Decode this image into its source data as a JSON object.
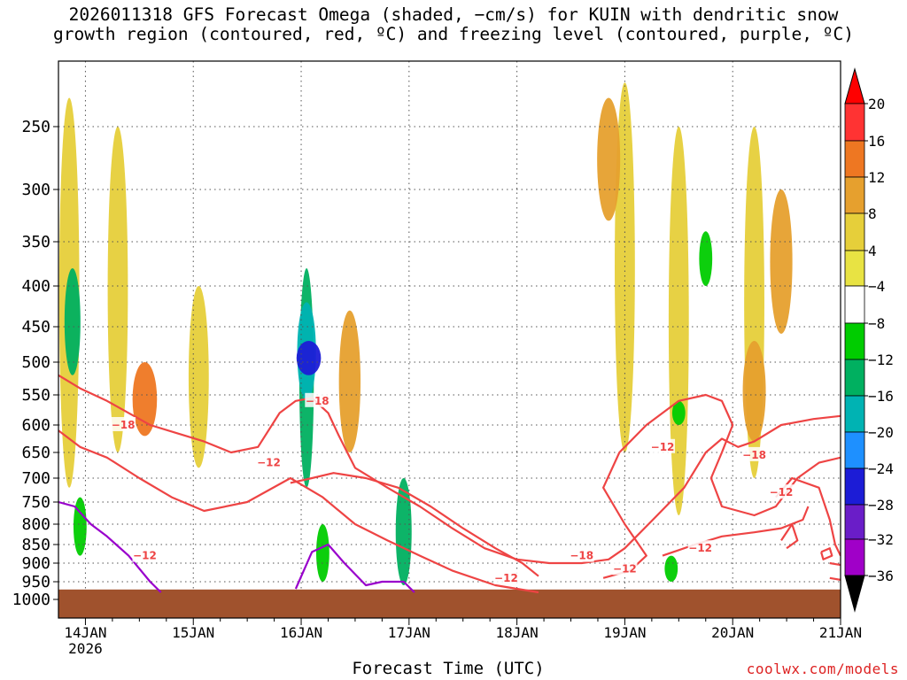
{
  "title": {
    "line1": "2026011318 GFS Forecast Omega (shaded, −cm/s) for KUIN with dendritic snow",
    "line2": "growth region (contoured, red, ºC) and freezing level (contoured, purple, ºC)"
  },
  "credit": "coolwx.com/models",
  "colors": {
    "terrain": "#a0522d",
    "dgz_contour": "#ee4444",
    "freezing_contour": "#9900cc",
    "grid": "#555555"
  },
  "chart_data": {
    "type": "heatmap",
    "xlabel": "Forecast Time (UTC)",
    "ylabel": "",
    "x_ticks": [
      {
        "label": "14JAN",
        "day": 14,
        "sub": "2026"
      },
      {
        "label": "15JAN",
        "day": 15
      },
      {
        "label": "16JAN",
        "day": 16
      },
      {
        "label": "17JAN",
        "day": 17
      },
      {
        "label": "18JAN",
        "day": 18
      },
      {
        "label": "19JAN",
        "day": 19
      },
      {
        "label": "20JAN",
        "day": 20
      },
      {
        "label": "21JAN",
        "day": 21
      }
    ],
    "xlim_days": [
      13.75,
      21.0
    ],
    "y_scale": "pressure (hPa), reversed",
    "y_ticks": [
      "250",
      "300",
      "350",
      "400",
      "450",
      "500",
      "550",
      "600",
      "650",
      "700",
      "750",
      "800",
      "850",
      "900",
      "950",
      "1000"
    ],
    "ylim_hpa": [
      200,
      1030
    ],
    "grid": true,
    "colorbar": {
      "labels": [
        "20",
        "16",
        "12",
        "8",
        "4",
        "-4",
        "-8",
        "-12",
        "-16",
        "-20",
        "-24",
        "-28",
        "-32",
        "-36"
      ],
      "colors": [
        "#ff0000",
        "#ff3333",
        "#ee7722",
        "#e6a02e",
        "#e6cf3a",
        "#e8e343",
        "#ffffff",
        "#00cc00",
        "#00b060",
        "#00b3b3",
        "#1e90ff",
        "#1c1cd6",
        "#6a1dc8",
        "#a000c8",
        "#a6a6a6"
      ]
    },
    "shaded_regions": [
      {
        "day": 13.85,
        "p_top": 230,
        "p_bot": 720,
        "omega": 6
      },
      {
        "day": 14.3,
        "p_top": 250,
        "p_bot": 650,
        "omega": 6
      },
      {
        "day": 14.55,
        "p_top": 500,
        "p_bot": 620,
        "omega": 12
      },
      {
        "day": 13.88,
        "p_top": 380,
        "p_bot": 520,
        "omega": -10
      },
      {
        "day": 13.95,
        "p_top": 740,
        "p_bot": 880,
        "omega": -6
      },
      {
        "day": 15.05,
        "p_top": 400,
        "p_bot": 680,
        "omega": 6
      },
      {
        "day": 16.05,
        "p_top": 380,
        "p_bot": 720,
        "omega": -8
      },
      {
        "day": 16.05,
        "p_top": 420,
        "p_bot": 560,
        "omega": -14
      },
      {
        "day": 16.07,
        "p_top": 470,
        "p_bot": 520,
        "omega": -22
      },
      {
        "day": 16.2,
        "p_top": 800,
        "p_bot": 950,
        "omega": -6
      },
      {
        "day": 16.45,
        "p_top": 430,
        "p_bot": 650,
        "omega": 8
      },
      {
        "day": 16.95,
        "p_top": 700,
        "p_bot": 960,
        "omega": -10
      },
      {
        "day": 19.0,
        "p_top": 220,
        "p_bot": 650,
        "omega": 6
      },
      {
        "day": 18.85,
        "p_top": 230,
        "p_bot": 330,
        "omega": 10
      },
      {
        "day": 19.5,
        "p_top": 250,
        "p_bot": 780,
        "omega": 6
      },
      {
        "day": 20.2,
        "p_top": 250,
        "p_bot": 700,
        "omega": 6
      },
      {
        "day": 20.2,
        "p_top": 470,
        "p_bot": 630,
        "omega": 10
      },
      {
        "day": 20.45,
        "p_top": 300,
        "p_bot": 460,
        "omega": 9
      },
      {
        "day": 19.75,
        "p_top": 340,
        "p_bot": 400,
        "omega": -6
      },
      {
        "day": 19.5,
        "p_top": 560,
        "p_bot": 600,
        "omega": -6
      },
      {
        "day": 19.43,
        "p_top": 880,
        "p_bot": 950,
        "omega": -6
      }
    ],
    "series": [
      {
        "name": "-18",
        "segments": [
          [
            [
              13.75,
              520
            ],
            [
              13.95,
              540
            ],
            [
              14.2,
              560
            ],
            [
              14.4,
              580
            ],
            [
              14.6,
              600
            ],
            [
              14.85,
              615
            ],
            [
              15.1,
              630
            ],
            [
              15.35,
              650
            ],
            [
              15.6,
              640
            ],
            [
              15.8,
              580
            ],
            [
              15.95,
              560
            ],
            [
              16.1,
              555
            ],
            [
              16.25,
              580
            ],
            [
              16.35,
              620
            ],
            [
              16.5,
              680
            ],
            [
              16.8,
              720
            ],
            [
              17.1,
              760
            ],
            [
              17.4,
              810
            ],
            [
              17.7,
              860
            ],
            [
              18.0,
              890
            ],
            [
              18.3,
              900
            ],
            [
              18.6,
              900
            ],
            [
              18.85,
              890
            ],
            [
              19.0,
              860
            ],
            [
              19.3,
              780
            ],
            [
              19.55,
              720
            ],
            [
              19.75,
              650
            ],
            [
              19.9,
              625
            ],
            [
              20.05,
              640
            ],
            [
              20.2,
              630
            ],
            [
              20.45,
              600
            ],
            [
              20.75,
              590
            ],
            [
              21.0,
              585
            ]
          ],
          [
            [
              13.75,
              610
            ],
            [
              13.95,
              640
            ],
            [
              14.2,
              660
            ],
            [
              14.5,
              700
            ],
            [
              14.8,
              740
            ],
            [
              15.1,
              770
            ],
            [
              15.5,
              750
            ],
            [
              15.9,
              700
            ],
            [
              16.2,
              740
            ],
            [
              16.5,
              800
            ],
            [
              16.8,
              840
            ],
            [
              17.1,
              880
            ],
            [
              17.4,
              920
            ],
            [
              17.8,
              960
            ],
            [
              18.2,
              980
            ]
          ]
        ]
      },
      {
        "name": "-12",
        "segments": [
          [
            [
              15.9,
              710
            ],
            [
              16.1,
              700
            ],
            [
              16.3,
              690
            ],
            [
              16.6,
              700
            ],
            [
              16.9,
              720
            ],
            [
              17.2,
              760
            ],
            [
              17.5,
              810
            ],
            [
              17.8,
              860
            ],
            [
              18.05,
              900
            ],
            [
              18.2,
              935
            ]
          ],
          [
            [
              18.8,
              940
            ],
            [
              19.05,
              920
            ],
            [
              19.2,
              880
            ],
            [
              19.0,
              800
            ],
            [
              18.8,
              720
            ],
            [
              18.95,
              650
            ],
            [
              19.2,
              600
            ],
            [
              19.5,
              560
            ],
            [
              19.75,
              550
            ],
            [
              19.9,
              560
            ],
            [
              20.0,
              600
            ],
            [
              19.9,
              650
            ],
            [
              19.8,
              700
            ],
            [
              19.9,
              760
            ],
            [
              20.2,
              780
            ],
            [
              20.4,
              760
            ],
            [
              20.6,
              700
            ],
            [
              20.8,
              670
            ],
            [
              21.0,
              660
            ]
          ],
          [
            [
              19.35,
              880
            ],
            [
              19.65,
              850
            ],
            [
              19.9,
              830
            ],
            [
              20.2,
              820
            ],
            [
              20.45,
              810
            ],
            [
              20.65,
              790
            ],
            [
              20.7,
              760
            ]
          ],
          [
            [
              20.4,
              740
            ],
            [
              20.55,
              700
            ],
            [
              20.8,
              720
            ],
            [
              20.9,
              790
            ],
            [
              20.95,
              850
            ],
            [
              21.0,
              880
            ]
          ],
          [
            [
              20.45,
              840
            ],
            [
              20.55,
              800
            ],
            [
              20.6,
              840
            ],
            [
              20.5,
              860
            ]
          ],
          [
            [
              20.82,
              870
            ],
            [
              20.9,
              860
            ],
            [
              20.92,
              880
            ],
            [
              20.84,
              890
            ],
            [
              20.82,
              870
            ]
          ],
          [
            [
              20.9,
              900
            ],
            [
              21.0,
              905
            ]
          ],
          [
            [
              20.9,
              940
            ],
            [
              21.0,
              945
            ]
          ]
        ]
      },
      {
        "name": "freezing level",
        "segments": [
          [
            [
              13.75,
              750
            ],
            [
              13.9,
              760
            ],
            [
              14.05,
              800
            ],
            [
              14.2,
              830
            ],
            [
              14.4,
              880
            ],
            [
              14.6,
              950
            ],
            [
              14.7,
              980
            ]
          ],
          [
            [
              15.95,
              970
            ],
            [
              16.1,
              870
            ],
            [
              16.25,
              850
            ],
            [
              16.4,
              900
            ],
            [
              16.6,
              960
            ],
            [
              16.75,
              950
            ],
            [
              16.95,
              950
            ],
            [
              17.05,
              980
            ]
          ]
        ]
      }
    ],
    "contour_labels": [
      {
        "text": "-18",
        "day": 14.35,
        "p": 600
      },
      {
        "text": "-18",
        "day": 16.15,
        "p": 560
      },
      {
        "text": "-12",
        "day": 15.7,
        "p": 670
      },
      {
        "text": "-12",
        "day": 14.55,
        "p": 880
      },
      {
        "text": "-18",
        "day": 18.6,
        "p": 880
      },
      {
        "text": "-12",
        "day": 17.9,
        "p": 940
      },
      {
        "text": "-12",
        "day": 19.0,
        "p": 915
      },
      {
        "text": "-12",
        "day": 19.35,
        "p": 640
      },
      {
        "text": "-12",
        "day": 19.7,
        "p": 860
      },
      {
        "text": "-18",
        "day": 20.2,
        "p": 655
      },
      {
        "text": "-12",
        "day": 20.45,
        "p": 730
      }
    ],
    "terrain_top_hpa": 972
  }
}
